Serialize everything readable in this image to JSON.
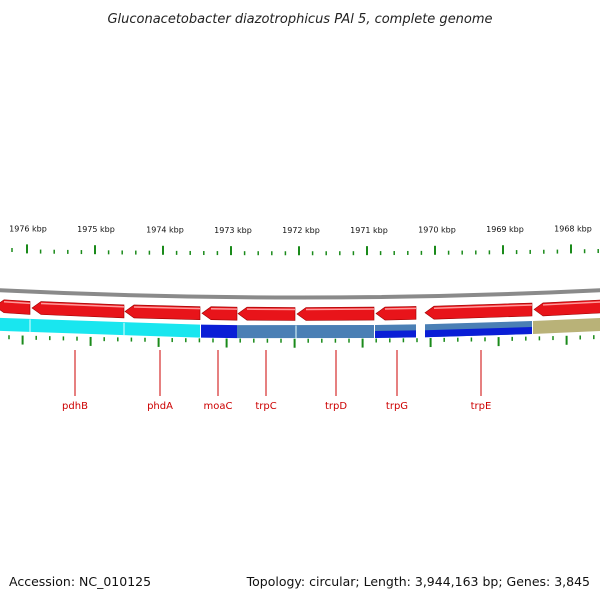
{
  "title": "Gluconacetobacter diazotrophicus PAl 5, complete genome",
  "footer": {
    "accession": "Accession: NC_010125",
    "topology": "Topology: circular; Length: 3,944,163 bp; Genes: 3,845"
  },
  "colors": {
    "backbone": "#8a8a8a",
    "forward_gene": "#e8141a",
    "tick": "#1a8a1a",
    "gene_label": "#cc0000",
    "cyan": "#19e6ef",
    "blue": "#0a1ed6",
    "steel": "#4a7fb5",
    "olive": "#b9b278"
  },
  "scale_labels": [
    {
      "text": "1976 kbp"
    },
    {
      "text": "1975 kbp"
    },
    {
      "text": "1974 kbp"
    },
    {
      "text": "1973 kbp"
    },
    {
      "text": "1972 kbp"
    },
    {
      "text": "1971 kbp"
    },
    {
      "text": "1970 kbp"
    },
    {
      "text": "1969 kbp"
    },
    {
      "text": "1968 kbp"
    }
  ],
  "genes": [
    {
      "name": "pdhB"
    },
    {
      "name": "phdA"
    },
    {
      "name": "moaC"
    },
    {
      "name": "trpC"
    },
    {
      "name": "trpD"
    },
    {
      "name": "trpG"
    },
    {
      "name": "trpE"
    }
  ]
}
